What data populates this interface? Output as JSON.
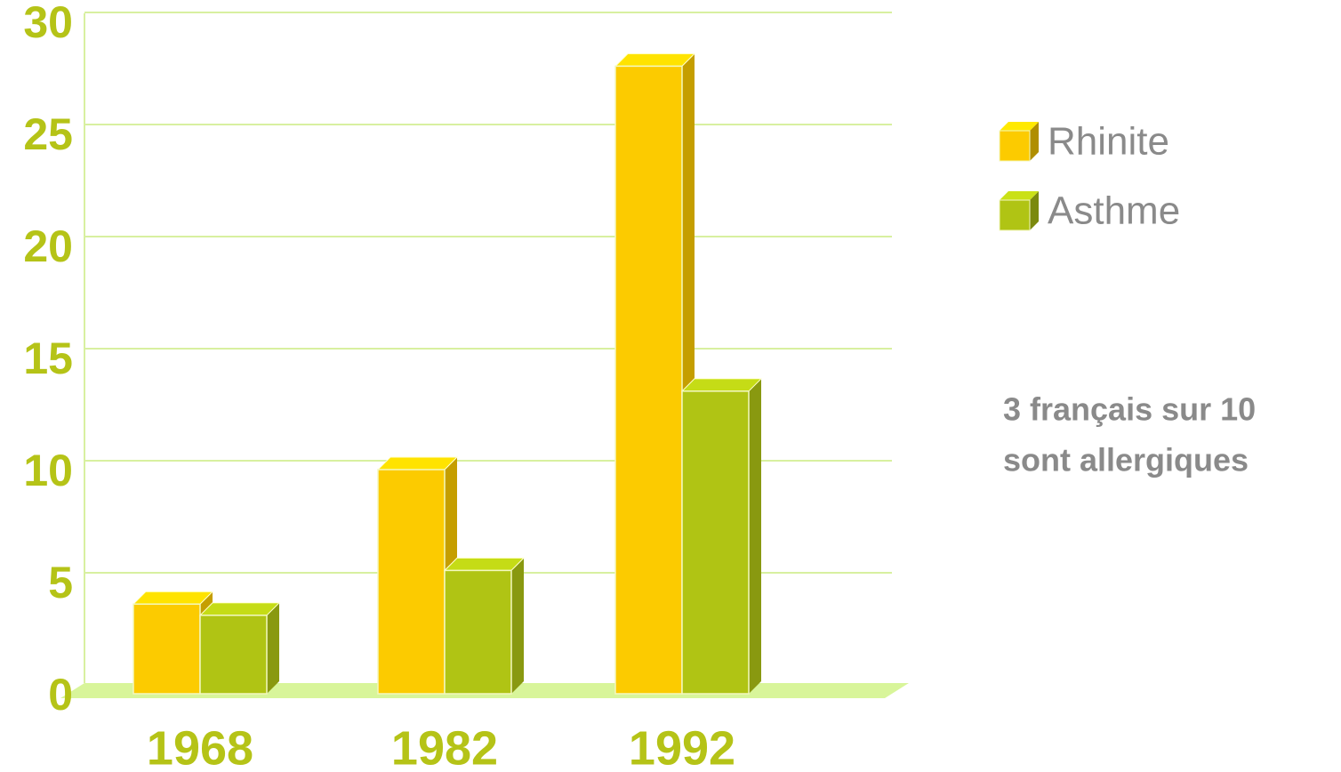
{
  "chart_data": {
    "type": "bar3d",
    "categories": [
      "1968",
      "1982",
      "1992"
    ],
    "series": [
      {
        "name": "Rhinite",
        "color": "#fccb00",
        "values": [
          4,
          10,
          28
        ]
      },
      {
        "name": "Asthme",
        "color": "#b0c414",
        "values": [
          3.5,
          5.5,
          13.5
        ]
      }
    ],
    "ylim": [
      0,
      30
    ],
    "yticks": [
      0,
      5,
      10,
      15,
      20,
      25,
      30
    ],
    "grid": true,
    "legend": "right",
    "annotation": [
      "3 français sur 10",
      "sont allergiques"
    ]
  }
}
